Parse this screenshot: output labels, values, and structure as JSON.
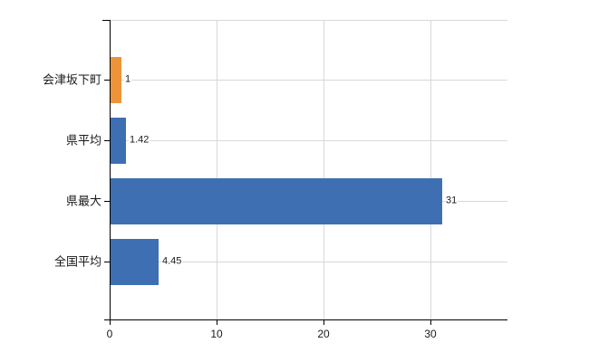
{
  "chart_data": {
    "type": "bar",
    "orientation": "horizontal",
    "categories": [
      "会津坂下町",
      "県平均",
      "県最大",
      "全国平均"
    ],
    "values": [
      1,
      1.42,
      31,
      4.45
    ],
    "value_labels": [
      "1",
      "1.42",
      "31",
      "4.45"
    ],
    "bar_colors": [
      "#ed9438",
      "#3d6fb2",
      "#3d6fb2",
      "#3d6fb2"
    ],
    "x_ticks": [
      0,
      10,
      20,
      30
    ],
    "x_tick_labels": [
      "0",
      "10",
      "20",
      "30"
    ],
    "xlim": [
      0,
      37.2
    ],
    "grid": true,
    "legend": false
  },
  "colors": {
    "axis": "#000000",
    "gridline": "#d8d8d8",
    "text": "#1a1a1a",
    "background": "#ffffff"
  }
}
